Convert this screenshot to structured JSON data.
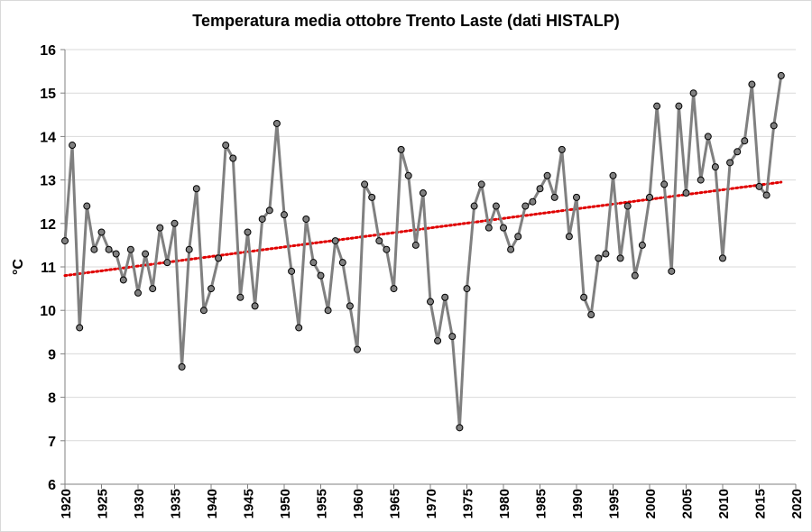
{
  "chart_data": {
    "type": "line",
    "title": "Temperatura media ottobre Trento Laste (dati HISTALP)",
    "ylabel": "°C",
    "xlabel": "",
    "xlim": [
      1920,
      2020
    ],
    "ylim": [
      6,
      16
    ],
    "x_ticks": [
      "1920",
      "1925",
      "1930",
      "1935",
      "1940",
      "1945",
      "1950",
      "1955",
      "1960",
      "1965",
      "1970",
      "1975",
      "1980",
      "1985",
      "1990",
      "1995",
      "2000",
      "2005",
      "2010",
      "2015",
      "2020"
    ],
    "y_ticks": [
      "6",
      "7",
      "8",
      "9",
      "10",
      "11",
      "12",
      "13",
      "14",
      "15",
      "16"
    ],
    "grid": "horizontal",
    "colors": {
      "series": "#808080",
      "marker": "#808080",
      "trend": "#e00000",
      "grid": "#d9d9d9"
    },
    "series": [
      {
        "x": [
          1920,
          1921,
          1922,
          1923,
          1924,
          1925,
          1926,
          1927,
          1928,
          1929,
          1930,
          1931,
          1932,
          1933,
          1934,
          1935,
          1936,
          1937,
          1938,
          1939,
          1940,
          1941,
          1942,
          1943,
          1944,
          1945,
          1946,
          1947,
          1948,
          1949,
          1950,
          1951,
          1952,
          1953,
          1954,
          1955,
          1956,
          1957,
          1958,
          1959,
          1960,
          1961,
          1962,
          1963,
          1964,
          1965,
          1966,
          1967,
          1968,
          1969,
          1970,
          1971,
          1972,
          1973,
          1974,
          1975,
          1976,
          1977,
          1978,
          1979,
          1980,
          1981,
          1982,
          1983,
          1984,
          1985,
          1986,
          1987,
          1988,
          1989,
          1990,
          1991,
          1992,
          1993,
          1994,
          1995,
          1996,
          1997,
          1998,
          1999,
          2000,
          2001,
          2002,
          2003,
          2004,
          2005,
          2006,
          2007,
          2008,
          2009,
          2010,
          2011,
          2012,
          2013,
          2014,
          2015,
          2016,
          2017,
          2018
        ],
        "values": [
          11.6,
          13.8,
          9.6,
          12.4,
          11.4,
          11.8,
          11.4,
          11.3,
          10.7,
          11.4,
          10.4,
          11.3,
          10.5,
          11.9,
          11.1,
          12.0,
          8.7,
          11.4,
          12.8,
          10.0,
          10.5,
          11.2,
          13.8,
          13.5,
          10.3,
          11.8,
          10.1,
          12.1,
          12.3,
          14.3,
          12.2,
          10.9,
          9.6,
          12.1,
          11.1,
          10.8,
          10.0,
          11.6,
          11.1,
          10.1,
          9.1,
          12.9,
          12.6,
          11.6,
          11.4,
          10.5,
          13.7,
          13.1,
          11.5,
          12.7,
          10.2,
          9.3,
          10.3,
          9.4,
          7.3,
          10.5,
          12.4,
          12.9,
          11.9,
          12.4,
          11.9,
          11.4,
          11.7,
          12.4,
          12.5,
          12.8,
          13.1,
          12.6,
          13.7,
          11.7,
          12.6,
          10.3,
          9.9,
          11.2,
          11.3,
          13.1,
          11.2,
          12.4,
          10.8,
          11.5,
          12.6,
          14.7,
          12.9,
          10.9,
          14.7,
          12.7,
          15.0,
          13.0,
          14.0,
          13.3,
          11.2,
          13.4,
          13.65,
          13.9,
          15.2,
          12.85,
          12.65,
          14.25,
          15.4
        ]
      }
    ],
    "trendline": {
      "style": "dotted",
      "start": [
        1920,
        10.8
      ],
      "end": [
        2018,
        12.95
      ]
    }
  }
}
